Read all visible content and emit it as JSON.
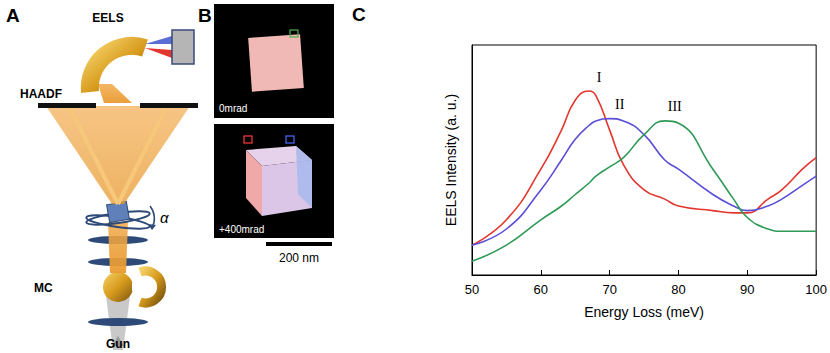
{
  "panel_labels": [
    "A",
    "B",
    "C"
  ],
  "diagram": {
    "labels": [
      "EELS",
      "HAADF",
      "α",
      "MC",
      "Gun"
    ]
  },
  "images": [
    {
      "label": "0mrad"
    },
    {
      "label": "+400mrad"
    }
  ],
  "scale_bar": "200 nm",
  "chart_data": {
    "type": "line",
    "x_label": "Energy Loss (meV)",
    "y_label": "EELS Intensity (a. u.)",
    "x": [
      50,
      55,
      60,
      63,
      65,
      67,
      68,
      70,
      72,
      75,
      78,
      80,
      85,
      88,
      90,
      93,
      95,
      98,
      100
    ],
    "series": [
      {
        "name": "I",
        "color": "#e3362e",
        "values": [
          0.13,
          0.24,
          0.46,
          0.63,
          0.76,
          0.8,
          0.78,
          0.63,
          0.48,
          0.37,
          0.33,
          0.3,
          0.28,
          0.27,
          0.27,
          0.33,
          0.37,
          0.46,
          0.51
        ]
      },
      {
        "name": "II",
        "color": "#5a4fd6",
        "values": [
          0.13,
          0.2,
          0.37,
          0.5,
          0.59,
          0.65,
          0.67,
          0.68,
          0.67,
          0.61,
          0.5,
          0.46,
          0.35,
          0.3,
          0.28,
          0.3,
          0.33,
          0.39,
          0.43
        ]
      },
      {
        "name": "III",
        "color": "#2f9a58",
        "values": [
          0.06,
          0.13,
          0.24,
          0.3,
          0.35,
          0.4,
          0.43,
          0.47,
          0.51,
          0.61,
          0.67,
          0.66,
          0.46,
          0.33,
          0.25,
          0.2,
          0.19,
          0.19,
          0.19
        ]
      }
    ],
    "xlim": [
      50,
      100
    ],
    "xticks": [
      50,
      60,
      70,
      80,
      90,
      100
    ],
    "ylim": [
      0,
      1
    ],
    "tick_labels": "x",
    "grid": false
  }
}
